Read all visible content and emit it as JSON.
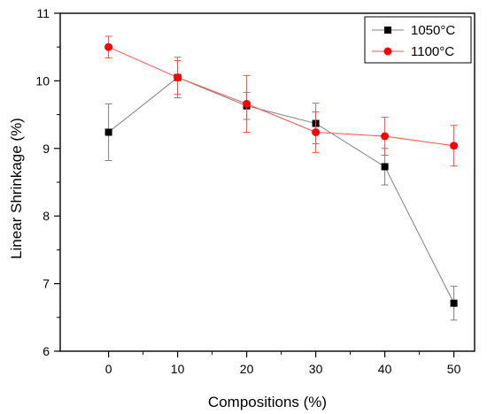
{
  "chart_data": {
    "type": "line",
    "title": "",
    "xlabel": "Compositions (%)",
    "ylabel": "Linear Shrinkage (%)",
    "xlim": [
      -7,
      53
    ],
    "ylim": [
      6,
      11
    ],
    "xticks": [
      0,
      10,
      20,
      30,
      40,
      50
    ],
    "yticks": [
      6,
      7,
      8,
      9,
      10,
      11
    ],
    "grid": false,
    "legend_position": "top-right",
    "series": [
      {
        "name": "1050°C",
        "color": "#000000",
        "line_color": "#7f7f7f",
        "marker": "square",
        "x": [
          0,
          10,
          20,
          30,
          40,
          50
        ],
        "y": [
          9.24,
          10.05,
          9.63,
          9.37,
          8.73,
          6.71
        ],
        "err": [
          0.42,
          0.3,
          0.2,
          0.3,
          0.27,
          0.25
        ]
      },
      {
        "name": "1100°C",
        "color": "#ff0000",
        "line_color": "#ff4d4d",
        "marker": "circle",
        "x": [
          0,
          10,
          20,
          30,
          40,
          50
        ],
        "y": [
          10.5,
          10.05,
          9.66,
          9.24,
          9.18,
          9.04
        ],
        "err": [
          0.16,
          0.25,
          0.42,
          0.3,
          0.28,
          0.3
        ]
      }
    ]
  }
}
